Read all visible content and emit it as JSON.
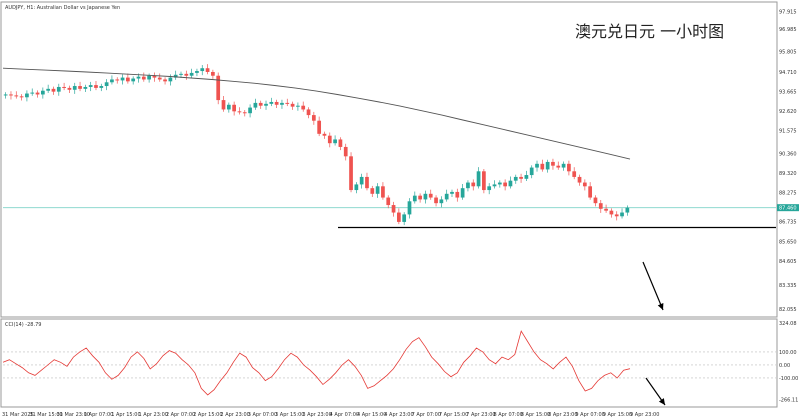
{
  "header": {
    "symbol_line": "AUDJPY, H1: Australian Dollar vs Japanese Yen",
    "overlay_title": "澳元兑日元 一小时图"
  },
  "chart_data": [
    {
      "type": "line",
      "name": "price-panel",
      "title": "AUDJPY, H1: Australian Dollar vs Japanese Yen",
      "ylim": [
        82.0,
        97.9
      ],
      "y_ticks": [
        "97.915",
        "96.985",
        "95.805",
        "94.710",
        "93.665",
        "92.620",
        "91.575",
        "90.360",
        "89.320",
        "88.275",
        "87.460",
        "86.735",
        "85.650",
        "84.605",
        "83.335",
        "82.055"
      ],
      "current_price_label": "87.460",
      "current_price": 87.46,
      "support_level": 86.4,
      "close_series": [
        93.5,
        93.45,
        93.4,
        93.35,
        93.55,
        93.6,
        93.5,
        93.7,
        93.8,
        93.65,
        93.9,
        93.85,
        93.75,
        93.95,
        93.8,
        93.9,
        94.0,
        93.85,
        93.95,
        94.15,
        94.3,
        94.25,
        94.4,
        94.2,
        94.35,
        94.45,
        94.3,
        94.5,
        94.4,
        94.3,
        94.2,
        94.4,
        94.55,
        94.6,
        94.5,
        94.65,
        94.75,
        94.9,
        94.7,
        94.5,
        93.2,
        92.7,
        92.95,
        92.6,
        92.55,
        92.5,
        92.8,
        93.05,
        92.9,
        93.0,
        93.1,
        92.95,
        93.05,
        93.0,
        92.85,
        92.9,
        92.7,
        92.4,
        92.1,
        91.4,
        91.3,
        90.9,
        91.1,
        90.7,
        90.2,
        88.4,
        88.7,
        89.1,
        88.5,
        88.2,
        88.6,
        88.0,
        87.6,
        87.2,
        86.7,
        87.1,
        87.8,
        88.1,
        87.9,
        88.2,
        88.0,
        87.7,
        87.9,
        88.2,
        88.3,
        88.0,
        88.5,
        88.8,
        88.6,
        89.4,
        88.4,
        88.6,
        88.7,
        88.8,
        88.6,
        88.9,
        89.1,
        89.0,
        89.2,
        89.6,
        89.8,
        89.5,
        89.9,
        89.7,
        89.6,
        89.8,
        89.4,
        89.1,
        88.8,
        88.6,
        88.0,
        87.7,
        87.4,
        87.3,
        87.1,
        87.0,
        87.2,
        87.46
      ],
      "ma_series": [
        94.9,
        94.85,
        94.8,
        94.75,
        94.7,
        94.64,
        94.58,
        94.52,
        94.46,
        94.38,
        94.3,
        94.2,
        94.1,
        93.98,
        93.84,
        93.68,
        93.5,
        93.3,
        93.1,
        92.88,
        92.64,
        92.4,
        92.14,
        91.88,
        91.62,
        91.36,
        91.1,
        90.84,
        90.58,
        90.32,
        90.05
      ]
    },
    {
      "type": "line",
      "name": "cci-panel",
      "title": "CCI(14) -28.79",
      "ylim": [
        -300,
        330
      ],
      "y_ticks": [
        "324.08",
        "100.00",
        "0.00",
        "-100.00",
        "-266.11"
      ],
      "levels": [
        100,
        0,
        -100
      ],
      "cci_values": [
        20,
        40,
        10,
        -20,
        -60,
        -80,
        -40,
        0,
        40,
        20,
        -10,
        60,
        100,
        130,
        70,
        20,
        -60,
        -110,
        -80,
        -20,
        60,
        100,
        50,
        -30,
        10,
        70,
        110,
        90,
        40,
        0,
        -60,
        -180,
        -230,
        -190,
        -120,
        -60,
        20,
        90,
        60,
        -20,
        -60,
        -120,
        -90,
        -30,
        40,
        90,
        60,
        0,
        -40,
        -90,
        -150,
        -110,
        -60,
        0,
        40,
        -10,
        -80,
        -180,
        -160,
        -120,
        -80,
        -30,
        40,
        120,
        180,
        210,
        140,
        60,
        10,
        -50,
        -90,
        -60,
        20,
        70,
        130,
        100,
        40,
        10,
        60,
        40,
        80,
        260,
        180,
        100,
        40,
        10,
        -30,
        20,
        60,
        -10,
        -120,
        -200,
        -180,
        -120,
        -80,
        -60,
        -100,
        -40,
        -28.79
      ]
    }
  ],
  "x_axis": {
    "tick_labels": [
      "31 Mar 2025",
      "31 Mar 15:00",
      "31 Mar 23:00",
      "1 Apr 07:00",
      "1 Apr 15:00",
      "1 Apr 23:00",
      "2 Apr 07:00",
      "2 Apr 15:00",
      "2 Apr 23:00",
      "3 Apr 07:00",
      "3 Apr 15:00",
      "3 Apr 23:00",
      "4 Apr 07:00",
      "4 Apr 15:00",
      "4 Apr 23:00",
      "7 Apr 07:00",
      "7 Apr 15:00",
      "7 Apr 23:00",
      "8 Apr 07:00",
      "8 Apr 15:00",
      "8 Apr 23:00",
      "9 Apr 07:00",
      "9 Apr 15:00",
      "9 Apr 23:00"
    ]
  },
  "colors": {
    "background": "#ffffff",
    "bull_candle": "#26a69a",
    "bear_candle": "#ef5350",
    "ma_line": "#555555",
    "cci_line": "#e53935",
    "price_line": "#7fd3c8",
    "support_line": "#000000",
    "frame": "#9a9a9a",
    "arrow": "#000000"
  }
}
